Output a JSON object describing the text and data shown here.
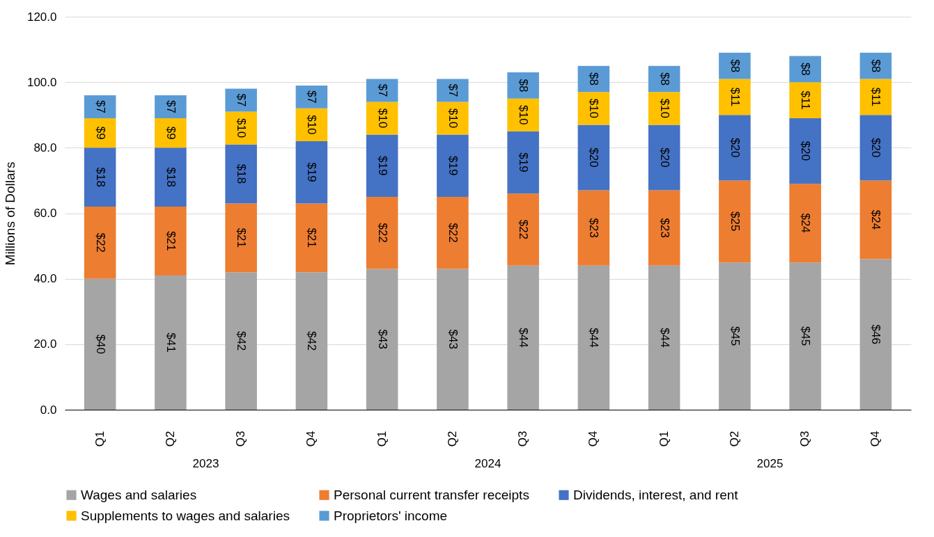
{
  "chart_data": {
    "type": "bar",
    "stacked": true,
    "ylabel": "Millions of Dollars",
    "categories": [
      "Q1",
      "Q2",
      "Q3",
      "Q4",
      "Q1",
      "Q2",
      "Q3",
      "Q4",
      "Q1",
      "Q2",
      "Q3",
      "Q4"
    ],
    "annotations": [
      "2023",
      "2024",
      "2025"
    ],
    "ylim": [
      0,
      120
    ],
    "yticks": [
      {
        "value": 0,
        "label": "0.0"
      },
      {
        "value": 20,
        "label": "20.0"
      },
      {
        "value": 40,
        "label": "40.0"
      },
      {
        "value": 60,
        "label": "60.0"
      },
      {
        "value": 80,
        "label": "80.0"
      },
      {
        "value": 100,
        "label": "100.0"
      },
      {
        "value": 120,
        "label": "120.0"
      }
    ],
    "grid": "y",
    "legend": "bottom",
    "series": [
      {
        "name": "Wages and salaries",
        "color": "#a5a5a5",
        "values": [
          40,
          41,
          42,
          42,
          43,
          43,
          44,
          44,
          44,
          45,
          45,
          46
        ],
        "value_labels": [
          "$40",
          "$41",
          "$42",
          "$42",
          "$43",
          "$43",
          "$44",
          "$44",
          "$44",
          "$45",
          "$45",
          "$46"
        ]
      },
      {
        "name": "Personal current transfer receipts",
        "color": "#ed7d31",
        "values": [
          22,
          21,
          21,
          21,
          22,
          22,
          22,
          23,
          23,
          25,
          24,
          24
        ],
        "value_labels": [
          "$22",
          "$21",
          "$21",
          "$21",
          "$22",
          "$22",
          "$22",
          "$23",
          "$23",
          "$25",
          "$24",
          "$24"
        ]
      },
      {
        "name": "Dividends, interest, and rent",
        "color": "#4472c4",
        "values": [
          18,
          18,
          18,
          19,
          19,
          19,
          19,
          20,
          20,
          20,
          20,
          20
        ],
        "value_labels": [
          "$18",
          "$18",
          "$18",
          "$19",
          "$19",
          "$19",
          "$19",
          "$20",
          "$20",
          "$20",
          "$20",
          "$20"
        ]
      },
      {
        "name": "Supplements to wages and salaries",
        "color": "#ffc000",
        "values": [
          9,
          9,
          10,
          10,
          10,
          10,
          10,
          10,
          10,
          11,
          11,
          11
        ],
        "value_labels": [
          "$9",
          "$9",
          "$10",
          "$10",
          "$10",
          "$10",
          "$10",
          "$10",
          "$10",
          "$11",
          "$11",
          "$11"
        ]
      },
      {
        "name": "Proprietors' income",
        "color": "#5b9bd5",
        "values": [
          7,
          7,
          7,
          7,
          7,
          7,
          8,
          8,
          8,
          8,
          8,
          8
        ],
        "value_labels": [
          "$7",
          "$7",
          "$7",
          "$7",
          "$7",
          "$7",
          "$8",
          "$8",
          "$8",
          "$8",
          "$8",
          "$8"
        ]
      }
    ]
  }
}
